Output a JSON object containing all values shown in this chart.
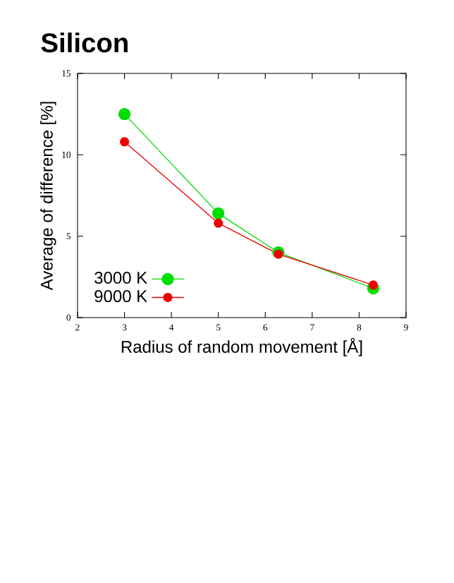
{
  "chart_data": {
    "type": "line",
    "title": "Silicon",
    "xlabel": "Radius of random movement [Å]",
    "ylabel": "Average of difference [%]",
    "x": [
      3,
      5,
      6.28,
      8.3
    ],
    "series": [
      {
        "name": "3000 K",
        "color": "#00dd00",
        "values": [
          12.5,
          6.4,
          4.0,
          1.8
        ]
      },
      {
        "name": "9000 K",
        "color": "#ee0000",
        "values": [
          10.8,
          5.8,
          3.9,
          2.0
        ]
      }
    ],
    "xlim": [
      2,
      9
    ],
    "xticks": [
      2,
      3,
      4,
      5,
      6,
      7,
      8,
      9
    ],
    "ylim": [
      0,
      15
    ],
    "yticks": [
      0,
      5,
      10,
      15
    ],
    "legend": "bottom left",
    "marker": "circle",
    "line_style": "solid",
    "grid": false
  }
}
